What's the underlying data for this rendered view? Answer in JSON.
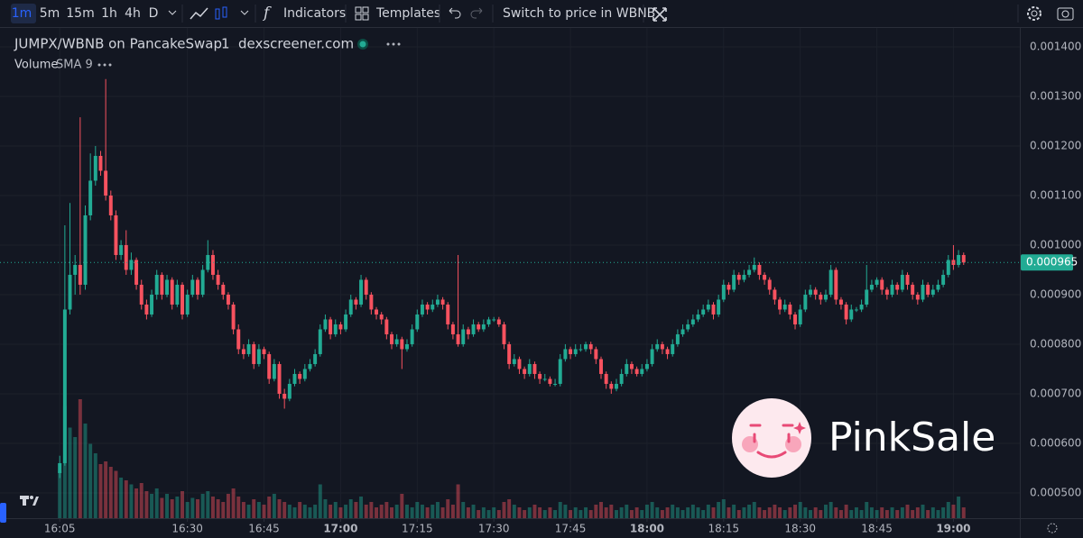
{
  "toolbar": {
    "intervals": [
      "1m",
      "5m",
      "15m",
      "1h",
      "4h",
      "D"
    ],
    "indicators": "Indicators",
    "templates": "Templates",
    "switch": "Switch to price in WBNB"
  },
  "legend": {
    "symbol": "JUMPX/WBNB on PancakeSwap",
    "interval": "1",
    "source": "dexscreener.com",
    "volume": "Volume",
    "sma": "SMA 9"
  },
  "watermark": "PinkSale",
  "chart_data": {
    "type": "candlestick",
    "grid": true,
    "up_color": "#22ab94",
    "down_color": "#f7525f",
    "xlim": [
      953.3,
      1153
    ],
    "ylim": [
      0.000449,
      0.00144
    ],
    "volume_lim": [
      0,
      100
    ],
    "xticks": [
      {
        "value": 965,
        "label": "16:05"
      },
      {
        "value": 990,
        "label": "16:30"
      },
      {
        "value": 1005,
        "label": "16:45"
      },
      {
        "value": 1020,
        "label": "17:00"
      },
      {
        "value": 1035,
        "label": "17:15"
      },
      {
        "value": 1050,
        "label": "17:30"
      },
      {
        "value": 1065,
        "label": "17:45"
      },
      {
        "value": 1080,
        "label": "18:00"
      },
      {
        "value": 1095,
        "label": "18:15"
      },
      {
        "value": 1110,
        "label": "18:30"
      },
      {
        "value": 1125,
        "label": "18:45"
      },
      {
        "value": 1140,
        "label": "19:00"
      }
    ],
    "yticks": [
      {
        "value": 0.0005,
        "label": "0.000500"
      },
      {
        "value": 0.0006,
        "label": "0.000600"
      },
      {
        "value": 0.0007,
        "label": "0.000700"
      },
      {
        "value": 0.0008,
        "label": "0.000800"
      },
      {
        "value": 0.0009,
        "label": "0.000900"
      },
      {
        "value": 0.001,
        "label": "0.001000"
      },
      {
        "value": 0.0011,
        "label": "0.001100"
      },
      {
        "value": 0.0012,
        "label": "0.001200"
      },
      {
        "value": 0.0013,
        "label": "0.001300"
      },
      {
        "value": 0.0014,
        "label": "0.001400"
      }
    ],
    "last_price": 0.000965,
    "x": [
      965,
      966,
      967,
      968,
      969,
      970,
      971,
      972,
      973,
      974,
      975,
      976,
      977,
      978,
      979,
      980,
      981,
      982,
      983,
      984,
      985,
      986,
      987,
      988,
      989,
      990,
      991,
      992,
      993,
      994,
      995,
      996,
      997,
      998,
      999,
      1000,
      1001,
      1002,
      1003,
      1004,
      1005,
      1006,
      1007,
      1008,
      1009,
      1010,
      1011,
      1012,
      1013,
      1014,
      1015,
      1016,
      1017,
      1018,
      1019,
      1020,
      1021,
      1022,
      1023,
      1024,
      1025,
      1026,
      1027,
      1028,
      1029,
      1030,
      1031,
      1032,
      1033,
      1034,
      1035,
      1036,
      1037,
      1038,
      1039,
      1040,
      1041,
      1042,
      1043,
      1044,
      1045,
      1046,
      1047,
      1048,
      1049,
      1050,
      1051,
      1052,
      1053,
      1054,
      1055,
      1056,
      1057,
      1058,
      1059,
      1060,
      1061,
      1062,
      1063,
      1064,
      1065,
      1066,
      1067,
      1068,
      1069,
      1070,
      1071,
      1072,
      1073,
      1074,
      1075,
      1076,
      1077,
      1078,
      1079,
      1080,
      1081,
      1082,
      1083,
      1084,
      1085,
      1086,
      1087,
      1088,
      1089,
      1090,
      1091,
      1092,
      1093,
      1094,
      1095,
      1096,
      1097,
      1098,
      1099,
      1100,
      1101,
      1102,
      1103,
      1104,
      1105,
      1106,
      1107,
      1108,
      1109,
      1110,
      1111,
      1112,
      1113,
      1114,
      1115,
      1116,
      1117,
      1118,
      1119,
      1120,
      1121,
      1122,
      1123,
      1124,
      1125,
      1126,
      1127,
      1128,
      1129,
      1130,
      1131,
      1132,
      1133,
      1134,
      1135,
      1136,
      1137,
      1138,
      1139,
      1140,
      1141,
      1142
    ],
    "open": [
      0.00054,
      0.00056,
      0.00087,
      0.00094,
      0.00096,
      0.00092,
      0.00106,
      0.00113,
      0.00118,
      0.00115,
      0.0011,
      0.00106,
      0.00098,
      0.001,
      0.00095,
      0.00097,
      0.00092,
      0.00088,
      0.00086,
      0.0009,
      0.00094,
      0.0009,
      0.00093,
      0.00088,
      0.00092,
      0.00086,
      0.0009,
      0.00093,
      0.0009,
      0.00095,
      0.00098,
      0.00094,
      0.00092,
      0.0009,
      0.00088,
      0.00083,
      0.00079,
      0.00078,
      0.0008,
      0.00076,
      0.00079,
      0.00078,
      0.00073,
      0.00076,
      0.0007,
      0.00069,
      0.00072,
      0.00074,
      0.00073,
      0.00075,
      0.00076,
      0.00078,
      0.00083,
      0.00085,
      0.00082,
      0.00084,
      0.00083,
      0.00086,
      0.00089,
      0.00088,
      0.00093,
      0.0009,
      0.00087,
      0.00086,
      0.00085,
      0.00082,
      0.0008,
      0.00081,
      0.00079,
      0.0008,
      0.00083,
      0.00086,
      0.00088,
      0.00087,
      0.00088,
      0.00089,
      0.00088,
      0.00084,
      0.00082,
      0.0008,
      0.00083,
      0.00082,
      0.00084,
      0.00083,
      0.00084,
      0.00085,
      0.00085,
      0.00084,
      0.0008,
      0.00076,
      0.00077,
      0.00075,
      0.00074,
      0.00076,
      0.00074,
      0.00073,
      0.00073,
      0.00072,
      0.00072,
      0.00077,
      0.00079,
      0.00078,
      0.00079,
      0.00079,
      0.0008,
      0.00079,
      0.00077,
      0.00074,
      0.00072,
      0.00071,
      0.00072,
      0.00074,
      0.00076,
      0.00075,
      0.00074,
      0.00075,
      0.00076,
      0.00079,
      0.0008,
      0.00079,
      0.00078,
      0.0008,
      0.00082,
      0.00083,
      0.00084,
      0.00085,
      0.00086,
      0.00087,
      0.00088,
      0.00086,
      0.00089,
      0.00092,
      0.00091,
      0.00094,
      0.00093,
      0.00094,
      0.00095,
      0.00096,
      0.00094,
      0.00093,
      0.00091,
      0.00089,
      0.00087,
      0.00088,
      0.00086,
      0.00084,
      0.00087,
      0.0009,
      0.00091,
      0.0009,
      0.00089,
      0.0009,
      0.00095,
      0.00089,
      0.00088,
      0.00085,
      0.00087,
      0.00087,
      0.00088,
      0.00091,
      0.00092,
      0.00093,
      0.00091,
      0.0009,
      0.00092,
      0.00091,
      0.00094,
      0.00092,
      0.0009,
      0.00089,
      0.00092,
      0.0009,
      0.00091,
      0.00092,
      0.00094,
      0.00097,
      0.00096,
      0.00098
    ],
    "high": [
      0.000575,
      0.00104,
      0.001085,
      0.00098,
      0.001258,
      0.00108,
      0.001185,
      0.0012,
      0.00119,
      0.001335,
      0.00111,
      0.00107,
      0.00101,
      0.00103,
      0.000985,
      0.000975,
      0.00093,
      0.00089,
      0.00091,
      0.00095,
      0.000945,
      0.00094,
      0.000935,
      0.00093,
      0.000925,
      0.00091,
      0.00094,
      0.000935,
      0.00096,
      0.00101,
      0.00099,
      0.00095,
      0.000925,
      0.000905,
      0.000885,
      0.00084,
      0.0008,
      0.00081,
      0.000805,
      0.0008,
      0.000795,
      0.000785,
      0.00077,
      0.000765,
      0.00071,
      0.00073,
      0.00075,
      0.000745,
      0.00076,
      0.00077,
      0.00079,
      0.00084,
      0.00086,
      0.000855,
      0.00085,
      0.000845,
      0.00087,
      0.0009,
      0.000895,
      0.00094,
      0.000935,
      0.000905,
      0.000875,
      0.000865,
      0.000855,
      0.000825,
      0.00082,
      0.000815,
      0.00081,
      0.00084,
      0.00087,
      0.00089,
      0.000885,
      0.00089,
      0.0009,
      0.000895,
      0.000885,
      0.000845,
      0.00098,
      0.00084,
      0.000835,
      0.00085,
      0.000845,
      0.00085,
      0.000855,
      0.000855,
      0.000855,
      0.000845,
      0.000805,
      0.00078,
      0.000775,
      0.000755,
      0.00077,
      0.000765,
      0.000745,
      0.00074,
      0.000735,
      0.00073,
      0.00078,
      0.0008,
      0.000795,
      0.0008,
      0.0008,
      0.000805,
      0.000805,
      0.000795,
      0.000775,
      0.000745,
      0.000725,
      0.00073,
      0.00075,
      0.00077,
      0.000765,
      0.000755,
      0.00076,
      0.00077,
      0.0008,
      0.00081,
      0.000805,
      0.000795,
      0.00081,
      0.00083,
      0.00084,
      0.00085,
      0.00086,
      0.00087,
      0.00088,
      0.00089,
      0.000885,
      0.0009,
      0.00093,
      0.000925,
      0.00095,
      0.000945,
      0.00095,
      0.00096,
      0.000975,
      0.000965,
      0.000945,
      0.000935,
      0.000915,
      0.000895,
      0.00089,
      0.000885,
      0.000865,
      0.00088,
      0.00091,
      0.00092,
      0.000915,
      0.000905,
      0.00091,
      0.00096,
      0.000955,
      0.000895,
      0.000885,
      0.00088,
      0.000875,
      0.00089,
      0.00096,
      0.00093,
      0.000935,
      0.000935,
      0.000915,
      0.00093,
      0.000925,
      0.00095,
      0.000945,
      0.000925,
      0.000905,
      0.00093,
      0.000925,
      0.00092,
      0.00093,
      0.00095,
      0.00098,
      0.001,
      0.00099,
      0.000985
    ],
    "low": [
      0.00053,
      0.000555,
      0.00086,
      0.0009,
      0.0009,
      0.00091,
      0.00105,
      0.00112,
      0.00114,
      0.00109,
      0.00105,
      0.00097,
      0.00097,
      0.00094,
      0.00094,
      0.00091,
      0.00087,
      0.00085,
      0.000855,
      0.00089,
      0.00089,
      0.000895,
      0.00087,
      0.000875,
      0.00085,
      0.000855,
      0.000895,
      0.00089,
      0.000895,
      0.000945,
      0.00093,
      0.00091,
      0.00089,
      0.00087,
      0.00082,
      0.00078,
      0.00077,
      0.000775,
      0.00075,
      0.000755,
      0.00077,
      0.00072,
      0.000725,
      0.00069,
      0.00067,
      0.000685,
      0.000715,
      0.00072,
      0.000725,
      0.000745,
      0.000755,
      0.000775,
      0.000825,
      0.00081,
      0.000815,
      0.00082,
      0.000825,
      0.000855,
      0.00087,
      0.000875,
      0.00089,
      0.00086,
      0.00085,
      0.00084,
      0.00081,
      0.00079,
      0.000795,
      0.00075,
      0.000785,
      0.000795,
      0.000825,
      0.000855,
      0.00086,
      0.000865,
      0.000875,
      0.00087,
      0.00083,
      0.00081,
      0.000795,
      0.000795,
      0.00081,
      0.000815,
      0.000825,
      0.000825,
      0.000835,
      0.000845,
      0.000835,
      0.00079,
      0.00075,
      0.000755,
      0.00074,
      0.00073,
      0.000735,
      0.00073,
      0.00072,
      0.000725,
      0.000715,
      0.000715,
      0.000715,
      0.000765,
      0.00077,
      0.000775,
      0.000785,
      0.000785,
      0.00078,
      0.00076,
      0.00073,
      0.00071,
      0.0007,
      0.000705,
      0.000715,
      0.000735,
      0.00074,
      0.000735,
      0.000735,
      0.000745,
      0.000755,
      0.000785,
      0.00078,
      0.00077,
      0.000775,
      0.000795,
      0.000815,
      0.000825,
      0.000835,
      0.000845,
      0.000855,
      0.000865,
      0.00085,
      0.000855,
      0.000885,
      0.0009,
      0.000905,
      0.00092,
      0.000925,
      0.000935,
      0.000945,
      0.00093,
      0.00092,
      0.0009,
      0.00088,
      0.00086,
      0.000865,
      0.00085,
      0.00083,
      0.000835,
      0.000865,
      0.000895,
      0.00089,
      0.00088,
      0.000885,
      0.000895,
      0.00088,
      0.00087,
      0.00084,
      0.000845,
      0.000865,
      0.000865,
      0.000875,
      0.000905,
      0.000915,
      0.0009,
      0.00089,
      0.000895,
      0.0009,
      0.000905,
      0.00091,
      0.00089,
      0.00088,
      0.000885,
      0.000895,
      0.000895,
      0.000905,
      0.000915,
      0.000935,
      0.00095,
      0.000955,
      0.00096
    ],
    "close": [
      0.00056,
      0.00087,
      0.00094,
      0.00096,
      0.00092,
      0.00106,
      0.00113,
      0.00118,
      0.00115,
      0.0011,
      0.00106,
      0.00098,
      0.001,
      0.00095,
      0.00097,
      0.00092,
      0.00088,
      0.00086,
      0.0009,
      0.00094,
      0.0009,
      0.00093,
      0.00088,
      0.00092,
      0.00086,
      0.0009,
      0.00093,
      0.0009,
      0.00095,
      0.00098,
      0.00094,
      0.00092,
      0.0009,
      0.00088,
      0.00083,
      0.00079,
      0.00078,
      0.0008,
      0.00076,
      0.00079,
      0.00078,
      0.00073,
      0.00076,
      0.0007,
      0.00069,
      0.00072,
      0.00074,
      0.00073,
      0.00075,
      0.00076,
      0.00078,
      0.00083,
      0.00085,
      0.00082,
      0.00084,
      0.00083,
      0.00086,
      0.00089,
      0.00088,
      0.00093,
      0.0009,
      0.00087,
      0.00086,
      0.00085,
      0.00082,
      0.0008,
      0.00081,
      0.00079,
      0.0008,
      0.00083,
      0.00086,
      0.00088,
      0.00087,
      0.00088,
      0.00089,
      0.00088,
      0.00084,
      0.00082,
      0.0008,
      0.00083,
      0.00082,
      0.00084,
      0.00083,
      0.00084,
      0.00085,
      0.00085,
      0.00084,
      0.0008,
      0.00076,
      0.00077,
      0.00075,
      0.00074,
      0.00076,
      0.00074,
      0.00073,
      0.00073,
      0.00072,
      0.00072,
      0.00077,
      0.00079,
      0.00078,
      0.00079,
      0.00079,
      0.0008,
      0.00079,
      0.00077,
      0.00074,
      0.00072,
      0.00071,
      0.00072,
      0.00074,
      0.00076,
      0.00075,
      0.00074,
      0.00075,
      0.00076,
      0.00079,
      0.0008,
      0.00079,
      0.00078,
      0.0008,
      0.00082,
      0.00083,
      0.00084,
      0.00085,
      0.00086,
      0.00087,
      0.00088,
      0.00086,
      0.00089,
      0.00092,
      0.00091,
      0.00094,
      0.00093,
      0.00094,
      0.00095,
      0.00096,
      0.00094,
      0.00093,
      0.00091,
      0.00089,
      0.00087,
      0.00088,
      0.00086,
      0.00084,
      0.00087,
      0.0009,
      0.00091,
      0.0009,
      0.00089,
      0.0009,
      0.00095,
      0.00089,
      0.00088,
      0.00085,
      0.00087,
      0.00087,
      0.00088,
      0.00091,
      0.00092,
      0.00093,
      0.00091,
      0.0009,
      0.00092,
      0.00091,
      0.00094,
      0.00092,
      0.0009,
      0.00089,
      0.00092,
      0.0009,
      0.00091,
      0.00092,
      0.00094,
      0.00097,
      0.00096,
      0.00098,
      0.000965
    ],
    "volume": [
      35,
      83,
      67,
      60,
      88,
      70,
      55,
      48,
      40,
      42,
      38,
      35,
      30,
      28,
      25,
      22,
      26,
      20,
      18,
      22,
      15,
      18,
      14,
      16,
      20,
      12,
      15,
      14,
      18,
      20,
      16,
      14,
      12,
      18,
      22,
      16,
      12,
      10,
      14,
      12,
      10,
      16,
      18,
      14,
      12,
      10,
      8,
      12,
      10,
      8,
      10,
      25,
      14,
      10,
      12,
      8,
      10,
      14,
      12,
      16,
      10,
      12,
      8,
      10,
      12,
      8,
      10,
      18,
      10,
      8,
      12,
      10,
      8,
      10,
      12,
      8,
      14,
      10,
      25,
      12,
      8,
      10,
      6,
      8,
      6,
      8,
      6,
      12,
      14,
      10,
      8,
      6,
      8,
      10,
      8,
      6,
      8,
      6,
      12,
      10,
      6,
      8,
      6,
      8,
      6,
      10,
      12,
      8,
      10,
      6,
      8,
      10,
      6,
      8,
      6,
      10,
      12,
      8,
      6,
      8,
      10,
      8,
      6,
      8,
      10,
      8,
      6,
      10,
      8,
      12,
      14,
      8,
      10,
      6,
      8,
      10,
      12,
      8,
      6,
      8,
      10,
      8,
      6,
      8,
      10,
      12,
      8,
      6,
      8,
      6,
      10,
      12,
      8,
      6,
      10,
      6,
      8,
      6,
      12,
      8,
      6,
      8,
      6,
      8,
      6,
      8,
      10,
      6,
      8,
      10,
      6,
      8,
      6,
      8,
      12,
      10,
      16,
      8
    ]
  }
}
